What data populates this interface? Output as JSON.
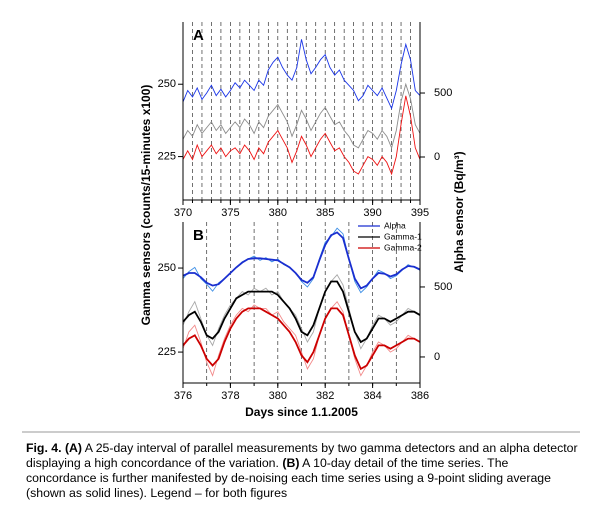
{
  "chart_data": [
    {
      "type": "line",
      "panel_label": "A",
      "ylabel": "Gamma sensors (counts/15-minutes x100)",
      "y2label": "Alpha sensor (Bq/m³)",
      "xlim": [
        370,
        395
      ],
      "xticks": [
        370,
        375,
        380,
        385,
        390,
        395
      ],
      "ylim": [
        210,
        271.5
      ],
      "yticks": [
        225,
        250
      ],
      "y2lim": [
        -336,
        1055
      ],
      "y2ticks": [
        0,
        500
      ],
      "day_lines": true,
      "x": [
        370,
        370.5,
        371,
        371.5,
        372,
        372.5,
        373,
        373.5,
        374,
        374.5,
        375,
        375.5,
        376,
        376.5,
        377,
        377.5,
        378,
        378.5,
        379,
        379.5,
        380,
        380.5,
        381,
        381.5,
        382,
        382.5,
        383,
        383.5,
        384,
        384.5,
        385,
        385.5,
        386,
        386.5,
        387,
        387.5,
        388,
        388.5,
        389,
        389.5,
        390,
        390.5,
        391,
        391.5,
        392,
        392.5,
        393,
        393.5,
        394,
        394.5,
        395
      ],
      "series": [
        {
          "name": "Gamma-1",
          "color": "#8c8c8c",
          "values": [
            231,
            234,
            232,
            236,
            233,
            235,
            237,
            234,
            236,
            233,
            235,
            237,
            235,
            238,
            236,
            233,
            237,
            235,
            239,
            241,
            243,
            240,
            237,
            232,
            236,
            241,
            238,
            234,
            237,
            240,
            242,
            239,
            236,
            237,
            234,
            232,
            229,
            228,
            231,
            234,
            233,
            231,
            234,
            232,
            228,
            234,
            244,
            250,
            245,
            236,
            233
          ]
        },
        {
          "name": "Gamma-2",
          "color": "#ee1111",
          "values": [
            224,
            227,
            224,
            229,
            225,
            227,
            229,
            226,
            228,
            225,
            227,
            228,
            226,
            229,
            227,
            224,
            228,
            226,
            230,
            232,
            234,
            231,
            228,
            223,
            227,
            232,
            229,
            225,
            228,
            231,
            233,
            230,
            227,
            228,
            225,
            223,
            220,
            219,
            222,
            225,
            224,
            222,
            225,
            223,
            219,
            225,
            236,
            246,
            239,
            228,
            224
          ]
        },
        {
          "name": "Alpha",
          "color": "#1a35e8",
          "axis": "y2",
          "values": [
            430,
            520,
            470,
            540,
            450,
            500,
            560,
            480,
            530,
            470,
            520,
            580,
            540,
            600,
            560,
            520,
            600,
            560,
            680,
            740,
            780,
            700,
            640,
            600,
            700,
            920,
            760,
            650,
            700,
            760,
            800,
            700,
            640,
            680,
            600,
            560,
            520,
            440,
            480,
            560,
            520,
            480,
            540,
            460,
            380,
            520,
            720,
            880,
            760,
            520,
            480
          ]
        }
      ]
    },
    {
      "type": "line",
      "panel_label": "B",
      "xlabel": "Days since 1.1.2005",
      "xlim": [
        376,
        386
      ],
      "xticks": [
        376,
        378,
        380,
        382,
        384,
        386
      ],
      "ylim": [
        215.8,
        263.7
      ],
      "yticks": [
        225,
        250
      ],
      "y2lim": [
        -186,
        964
      ],
      "y2ticks": [
        0,
        500
      ],
      "day_lines": true,
      "legend": "upper right",
      "x": [
        376,
        376.25,
        376.5,
        376.75,
        377,
        377.25,
        377.5,
        377.75,
        378,
        378.25,
        378.5,
        378.75,
        379,
        379.25,
        379.5,
        379.75,
        380,
        380.25,
        380.5,
        380.75,
        381,
        381.25,
        381.5,
        381.75,
        382,
        382.25,
        382.5,
        382.75,
        383,
        383.25,
        383.5,
        383.75,
        384,
        384.25,
        384.5,
        384.75,
        385,
        385.25,
        385.5,
        385.75,
        386
      ],
      "series": [
        {
          "name": "Alpha",
          "color": "#1a2fd0",
          "raw_color": "#3d8fe6",
          "axis": "y2",
          "values": [
            560,
            610,
            640,
            560,
            520,
            470,
            530,
            560,
            600,
            640,
            680,
            700,
            720,
            690,
            710,
            680,
            700,
            660,
            640,
            600,
            540,
            500,
            560,
            700,
            820,
            860,
            920,
            880,
            700,
            540,
            460,
            500,
            560,
            620,
            600,
            560,
            580,
            620,
            660,
            640,
            620
          ],
          "smooth": [
            580,
            600,
            600,
            570,
            530,
            510,
            520,
            560,
            600,
            640,
            675,
            700,
            705,
            705,
            700,
            695,
            690,
            665,
            640,
            600,
            550,
            530,
            570,
            690,
            800,
            870,
            890,
            850,
            700,
            560,
            490,
            510,
            560,
            600,
            595,
            575,
            590,
            625,
            650,
            645,
            625
          ]
        },
        {
          "name": "Gamma-1",
          "color": "#000000",
          "raw_color": "#a8a8a8",
          "values": [
            233,
            237,
            240,
            235,
            230,
            227,
            232,
            236,
            239,
            241,
            243,
            242,
            244,
            243,
            244,
            242,
            243,
            240,
            238,
            236,
            232,
            228,
            231,
            238,
            243,
            246,
            248,
            245,
            238,
            231,
            226,
            229,
            233,
            236,
            235,
            233,
            234,
            236,
            238,
            237,
            236
          ],
          "smooth": [
            234,
            236,
            237,
            234,
            230,
            229,
            231,
            235,
            238,
            241,
            242,
            243,
            243,
            243,
            243,
            243,
            242,
            240,
            238,
            235,
            231,
            230,
            233,
            238,
            243,
            246,
            246,
            243,
            237,
            231,
            228,
            229,
            232,
            235,
            235,
            234,
            235,
            236,
            237,
            237,
            236
          ]
        },
        {
          "name": "Gamma-2",
          "color": "#cc0000",
          "raw_color": "#f28a8a",
          "values": [
            226,
            231,
            233,
            228,
            222,
            218,
            224,
            229,
            233,
            236,
            238,
            237,
            239,
            238,
            238,
            236,
            237,
            234,
            232,
            230,
            225,
            220,
            223,
            230,
            235,
            238,
            240,
            237,
            230,
            223,
            218,
            221,
            225,
            228,
            227,
            225,
            226,
            228,
            230,
            229,
            228
          ],
          "smooth": [
            227,
            229,
            230,
            227,
            223,
            221,
            223,
            228,
            232,
            235,
            237,
            238,
            238,
            238,
            237,
            236,
            235,
            233,
            231,
            228,
            224,
            222,
            225,
            230,
            235,
            238,
            238,
            236,
            230,
            224,
            220,
            221,
            224,
            227,
            227,
            226,
            227,
            228,
            229,
            229,
            228
          ]
        }
      ]
    }
  ],
  "separator": true,
  "caption": [
    {
      "text": "Fig. 4. (A)",
      "bold": true
    },
    {
      "text": " A 25-day interval of parallel measurements by two gamma detectors and an alpha detector displaying a high concordance of the variation. ",
      "bold": false
    },
    {
      "text": "(B)",
      "bold": true
    },
    {
      "text": " A 10-day detail of the time series. The concordance is further manifested by de-noising each time series using a 9-point sliding average (shown as solid lines). Legend – for both figures",
      "bold": false
    }
  ]
}
